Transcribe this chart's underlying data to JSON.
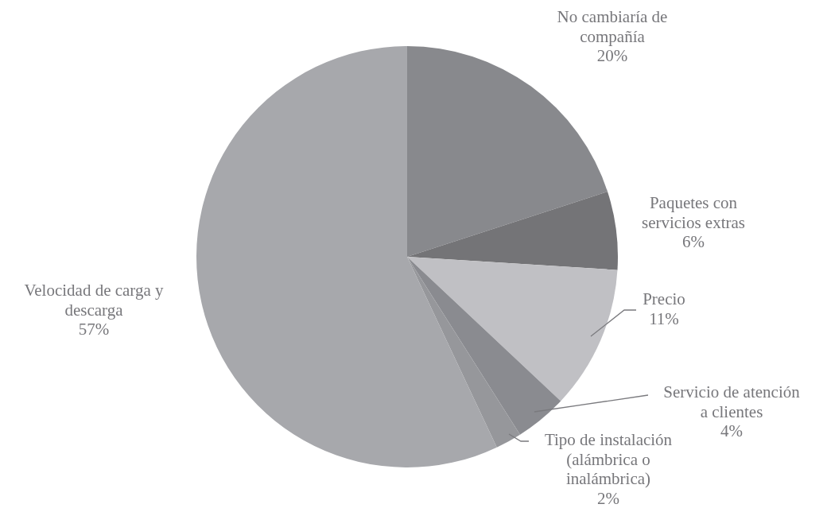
{
  "chart_data": {
    "type": "pie",
    "categories": [
      "No cambiaría de compañía",
      "Paquetes con servicios extras",
      "Precio",
      "Servicio de atención a clientes",
      "Tipo de instalación (alámbrica o inalámbrica)",
      "Velocidad de carga y descarga"
    ],
    "values": [
      20,
      6,
      11,
      4,
      2,
      57
    ],
    "value_labels": [
      "20%",
      "6%",
      "11%",
      "4%",
      "2%",
      "57%"
    ],
    "colors": [
      "#88898d",
      "#747477",
      "#c0c0c4",
      "#8a8b90",
      "#96979b",
      "#a7a8ac"
    ]
  }
}
